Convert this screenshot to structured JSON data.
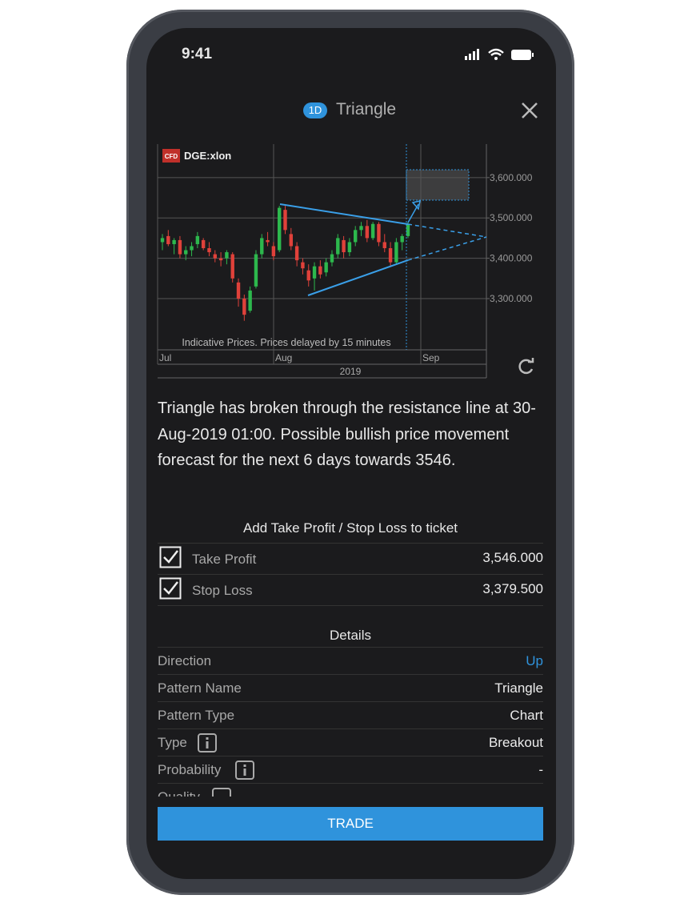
{
  "status_bar": {
    "time": "9:41"
  },
  "header": {
    "badge": "1D",
    "title": "Triangle"
  },
  "chart": {
    "badge": "CFD",
    "symbol": "DGE:xlon",
    "ylim": [
      3173,
      3683
    ],
    "yticks": [
      {
        "value": 3600,
        "label": "3,600.000"
      },
      {
        "value": 3500,
        "label": "3,500.000"
      },
      {
        "value": 3400,
        "label": "3,400.000"
      },
      {
        "value": 3300,
        "label": "3,300.000"
      }
    ],
    "x_labels": [
      "Jul",
      "Aug",
      "Sep"
    ],
    "year": "2019",
    "note": "Indicative Prices. Prices delayed by 15 minutes",
    "up_color": "#2db84d",
    "down_color": "#e0413a",
    "candles": [
      [
        3440,
        3460,
        3420,
        3450
      ],
      [
        3455,
        3470,
        3430,
        3435
      ],
      [
        3435,
        3450,
        3410,
        3445
      ],
      [
        3445,
        3455,
        3400,
        3410
      ],
      [
        3410,
        3430,
        3395,
        3420
      ],
      [
        3420,
        3440,
        3405,
        3430
      ],
      [
        3435,
        3465,
        3425,
        3455
      ],
      [
        3445,
        3450,
        3420,
        3425
      ],
      [
        3425,
        3440,
        3405,
        3415
      ],
      [
        3410,
        3420,
        3390,
        3400
      ],
      [
        3400,
        3415,
        3380,
        3395
      ],
      [
        3400,
        3420,
        3385,
        3415
      ],
      [
        3410,
        3415,
        3340,
        3350
      ],
      [
        3340,
        3350,
        3280,
        3300
      ],
      [
        3300,
        3310,
        3245,
        3260
      ],
      [
        3270,
        3330,
        3265,
        3320
      ],
      [
        3330,
        3420,
        3325,
        3410
      ],
      [
        3410,
        3460,
        3400,
        3450
      ],
      [
        3445,
        3465,
        3430,
        3440
      ],
      [
        3430,
        3440,
        3395,
        3405
      ],
      [
        3420,
        3530,
        3415,
        3525
      ],
      [
        3520,
        3530,
        3460,
        3470
      ],
      [
        3460,
        3475,
        3420,
        3430
      ],
      [
        3430,
        3440,
        3380,
        3395
      ],
      [
        3390,
        3400,
        3360,
        3375
      ],
      [
        3370,
        3385,
        3330,
        3345
      ],
      [
        3350,
        3390,
        3320,
        3380
      ],
      [
        3380,
        3395,
        3350,
        3360
      ],
      [
        3365,
        3400,
        3355,
        3390
      ],
      [
        3390,
        3420,
        3380,
        3410
      ],
      [
        3410,
        3460,
        3400,
        3450
      ],
      [
        3445,
        3455,
        3400,
        3415
      ],
      [
        3415,
        3450,
        3405,
        3440
      ],
      [
        3440,
        3480,
        3430,
        3470
      ],
      [
        3470,
        3490,
        3455,
        3480
      ],
      [
        3480,
        3495,
        3440,
        3450
      ],
      [
        3450,
        3490,
        3445,
        3485
      ],
      [
        3485,
        3490,
        3430,
        3440
      ],
      [
        3440,
        3460,
        3415,
        3425
      ],
      [
        3425,
        3440,
        3380,
        3390
      ],
      [
        3390,
        3450,
        3385,
        3440
      ],
      [
        3440,
        3460,
        3420,
        3455
      ],
      [
        3455,
        3490,
        3450,
        3485
      ]
    ]
  },
  "description": "Triangle has broken through the resistance line at 30-Aug-2019 01:00. Possible bullish price movement forecast for the next 6 days towards 3546.",
  "ticket": {
    "title": "Add Take Profit / Stop Loss to ticket",
    "rows": [
      {
        "label": "Take Profit",
        "value": "3,546.000"
      },
      {
        "label": "Stop Loss",
        "value": "3,379.500"
      }
    ]
  },
  "details": {
    "title": "Details",
    "rows": [
      {
        "label": "Direction",
        "value": "Up"
      },
      {
        "label": "Pattern Name",
        "value": "Triangle"
      },
      {
        "label": "Pattern Type",
        "value": "Chart"
      },
      {
        "label": "Type",
        "value": "Breakout"
      },
      {
        "label": "Probability",
        "value": "-"
      },
      {
        "label": "Quality",
        "value": "----"
      }
    ]
  },
  "button": "TRADE"
}
